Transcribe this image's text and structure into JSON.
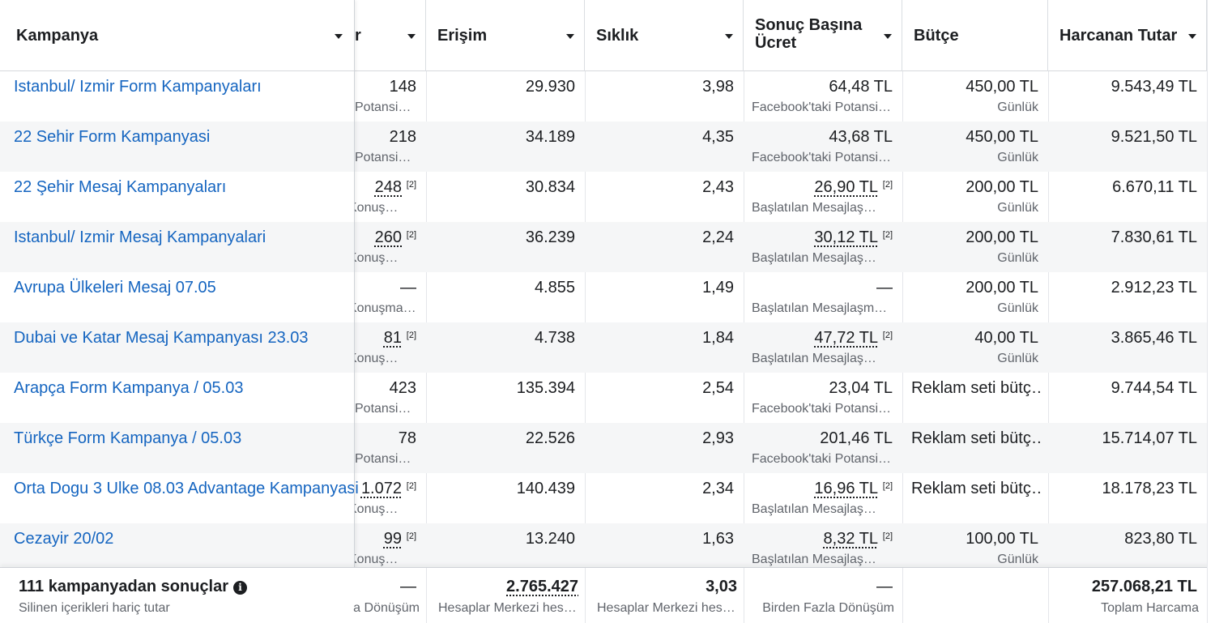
{
  "columns": {
    "kampanya": "Kampanya",
    "results_partial": "r",
    "erisim": "Erişim",
    "siklik": "Sıklık",
    "sonuc_basina_ucret": "Sonuç Başına Ücret",
    "butce": "Bütçe",
    "harcanan_tutar": "Harcanan Tutar"
  },
  "rows": [
    {
      "name": "Istanbul/ Izmir Form Kampanyaları",
      "results": "148",
      "results_sup": "",
      "results_sub": "i Potansi…",
      "erisim": "29.930",
      "siklik": "3,98",
      "cpr": "64,48 TL",
      "cpr_sup": "",
      "cpr_sub": "Facebook'taki Potansi…",
      "budget": "450,00 TL",
      "budget_sub": "Günlük",
      "spent": "9.543,49 TL"
    },
    {
      "name": "22 Sehir Form Kampanyasi",
      "results": "218",
      "results_sup": "",
      "results_sub": "i Potansi…",
      "erisim": "34.189",
      "siklik": "4,35",
      "cpr": "43,68 TL",
      "cpr_sup": "",
      "cpr_sub": "Facebook'taki Potansi…",
      "budget": "450,00 TL",
      "budget_sub": "Günlük",
      "spent": "9.521,50 TL"
    },
    {
      "name": "22 Şehir Mesaj Kampanyaları",
      "results": "248",
      "results_sup": "[2]",
      "results_sub": "Konuş…",
      "erisim": "30.834",
      "siklik": "2,43",
      "cpr": "26,90 TL",
      "cpr_sup": "[2]",
      "cpr_sub": "Başlatılan Mesajlaş…",
      "budget": "200,00 TL",
      "budget_sub": "Günlük",
      "spent": "6.670,11 TL"
    },
    {
      "name": "Istanbul/ Izmir Mesaj Kampanyalari",
      "results": "260",
      "results_sup": "[2]",
      "results_sub": "Konuş…",
      "erisim": "36.239",
      "siklik": "2,24",
      "cpr": "30,12 TL",
      "cpr_sup": "[2]",
      "cpr_sub": "Başlatılan Mesajlaş…",
      "budget": "200,00 TL",
      "budget_sub": "Günlük",
      "spent": "7.830,61 TL"
    },
    {
      "name": "Avrupa Ülkeleri Mesaj 07.05",
      "results": "—",
      "results_sup": "",
      "results_sub": "Konuşma…",
      "erisim": "4.855",
      "siklik": "1,49",
      "cpr": "—",
      "cpr_sup": "",
      "cpr_sub": "Başlatılan Mesajlaşma…",
      "budget": "200,00 TL",
      "budget_sub": "Günlük",
      "spent": "2.912,23 TL"
    },
    {
      "name": "Dubai ve Katar Mesaj Kampanyası 23.03",
      "results": "81",
      "results_sup": "[2]",
      "results_sub": "Konuş…",
      "erisim": "4.738",
      "siklik": "1,84",
      "cpr": "47,72 TL",
      "cpr_sup": "[2]",
      "cpr_sub": "Başlatılan Mesajlaş…",
      "budget": "40,00 TL",
      "budget_sub": "Günlük",
      "spent": "3.865,46 TL"
    },
    {
      "name": "Arapça Form Kampanya / 05.03",
      "results": "423",
      "results_sup": "",
      "results_sub": "i Potansi…",
      "erisim": "135.394",
      "siklik": "2,54",
      "cpr": "23,04 TL",
      "cpr_sup": "",
      "cpr_sub": "Facebook'taki Potansi…",
      "budget": "Reklam seti bütç…",
      "budget_sub": "",
      "spent": "9.744,54 TL"
    },
    {
      "name": "Türkçe Form Kampanya / 05.03",
      "results": "78",
      "results_sup": "",
      "results_sub": "i Potansi…",
      "erisim": "22.526",
      "siklik": "2,93",
      "cpr": "201,46 TL",
      "cpr_sup": "",
      "cpr_sub": "Facebook'taki Potansi…",
      "budget": "Reklam seti bütç…",
      "budget_sub": "",
      "spent": "15.714,07 TL"
    },
    {
      "name": "Orta Dogu 3 Ulke 08.03 Advantage Kampanyasi",
      "results": "1.072",
      "results_sup": "[2]",
      "results_sub": "Konuş…",
      "erisim": "140.439",
      "siklik": "2,34",
      "cpr": "16,96 TL",
      "cpr_sup": "[2]",
      "cpr_sub": "Başlatılan Mesajlaş…",
      "budget": "Reklam seti bütç…",
      "budget_sub": "",
      "spent": "18.178,23 TL"
    },
    {
      "name": "Cezayir 20/02",
      "results": "99",
      "results_sup": "[2]",
      "results_sub": "Konuş…",
      "erisim": "13.240",
      "siklik": "1,63",
      "cpr": "8,32 TL",
      "cpr_sup": "[2]",
      "cpr_sub": "Başlatılan Mesajlaş…",
      "budget": "100,00 TL",
      "budget_sub": "Günlük",
      "spent": "823,80 TL"
    }
  ],
  "footer": {
    "title": "111 kampanyadan sonuçlar",
    "subtitle": "Silinen içerikleri hariç tutar",
    "results": "—",
    "results_note": "a Dönüşüm",
    "erisim": "2.765.427",
    "erisim_note": "Hesaplar Merkezi hes…",
    "siklik": "3,03",
    "siklik_note": "Hesaplar Merkezi hes…",
    "cpr": "—",
    "cpr_note": "Birden Fazla Dönüşüm",
    "spent": "257.068,21 TL",
    "spent_note": "Toplam Harcama"
  },
  "icons": {
    "info": "info-icon",
    "sort": "caret-down-icon"
  },
  "colors": {
    "link": "#1565c0",
    "text": "#1c1e21",
    "muted": "#60646b",
    "alt_row": "#f5f6f7"
  }
}
